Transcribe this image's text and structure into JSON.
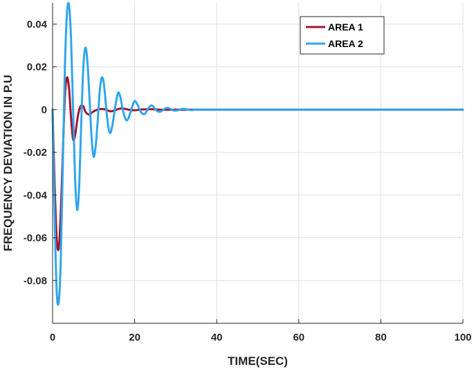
{
  "chart_data": {
    "type": "line",
    "title": "",
    "xlabel": "TIME(SEC)",
    "ylabel": "FREQUENCY DEVIATION IN P.U",
    "xlim": [
      0,
      100
    ],
    "ylim": [
      -0.1,
      0.05
    ],
    "x_ticks": [
      0,
      20,
      40,
      60,
      80,
      100
    ],
    "x_tick_labels": [
      "0",
      "20",
      "40",
      "60",
      "80",
      "100"
    ],
    "y_ticks": [
      0.04,
      0.02,
      0,
      -0.02,
      -0.04,
      -0.06,
      -0.08
    ],
    "y_tick_labels": [
      "0.04",
      "0.02",
      "0",
      "-0.02",
      "-0.04",
      "-0.06",
      "-0.08"
    ],
    "grid": true,
    "legend_position": "top-right",
    "series": [
      {
        "name": "AREA 1",
        "color": "#a2142f",
        "x": [
          0,
          0.5,
          1.0,
          1.5,
          2.0,
          2.5,
          3.0,
          3.5,
          4.0,
          4.5,
          5.0,
          5.5,
          6.0,
          6.5,
          7.0,
          7.5,
          8.0,
          8.5,
          9.0,
          9.5,
          10.0,
          11.0,
          12.0,
          13.0,
          14.0,
          15.0,
          16.0,
          17.0,
          18.0,
          19.0,
          20.0,
          22.0,
          24.0,
          26.0,
          28.0,
          30.0,
          35.0,
          40.0,
          50.0,
          60.0,
          70.0,
          80.0,
          90.0,
          100.0
        ],
        "y": [
          0,
          -0.035,
          -0.06,
          -0.065,
          -0.048,
          -0.02,
          0.006,
          0.015,
          0.01,
          -0.004,
          -0.014,
          -0.012,
          -0.005,
          0.0,
          0.002,
          0.0015,
          -0.001,
          -0.002,
          -0.0022,
          -0.0015,
          -0.0008,
          0.0,
          0.0003,
          0.0,
          -0.0008,
          -0.0005,
          0.0003,
          0.0006,
          0.0002,
          -0.0002,
          -0.0003,
          0.0001,
          0.0002,
          0.0,
          -0.0001,
          0.0,
          0.0,
          0.0,
          0.0,
          0.0,
          0.0,
          0.0,
          0.0,
          0.0
        ]
      },
      {
        "name": "AREA 2",
        "color": "#2ea6ec",
        "x": [
          0,
          0.5,
          1.0,
          1.5,
          2.0,
          2.5,
          3.0,
          3.5,
          4.0,
          4.5,
          5.0,
          5.5,
          6.0,
          6.5,
          7.0,
          7.5,
          8.0,
          8.5,
          9.0,
          9.5,
          10.0,
          10.5,
          11.0,
          11.5,
          12.0,
          12.5,
          13.0,
          13.5,
          14.0,
          14.5,
          15.0,
          15.5,
          16.0,
          16.5,
          17.0,
          17.5,
          18.0,
          18.5,
          19.0,
          19.5,
          20.0,
          20.5,
          21.0,
          21.5,
          22.0,
          22.5,
          23.0,
          23.5,
          24.0,
          24.5,
          25.0,
          25.5,
          26.0,
          26.5,
          27.0,
          27.5,
          28.0,
          28.5,
          29.0,
          29.5,
          30.0,
          30.5,
          31.0,
          31.5,
          32.0,
          32.5,
          33.0,
          33.5,
          34.0,
          34.5,
          35.0,
          36.0,
          38.0,
          40.0,
          45.0,
          50.0,
          60.0,
          70.0,
          80.0,
          90.0,
          100.0
        ],
        "y": [
          0,
          -0.05,
          -0.085,
          -0.09,
          -0.07,
          -0.025,
          0.02,
          0.045,
          0.049,
          0.033,
          0.0,
          -0.033,
          -0.047,
          -0.035,
          -0.005,
          0.02,
          0.029,
          0.022,
          0.005,
          -0.013,
          -0.022,
          -0.017,
          -0.005,
          0.009,
          0.015,
          0.012,
          0.002,
          -0.007,
          -0.011,
          -0.008,
          -0.002,
          0.004,
          0.008,
          0.006,
          0.001,
          -0.003,
          -0.005,
          -0.004,
          -0.001,
          0.002,
          0.004,
          0.003,
          0.001,
          -0.001,
          -0.002,
          -0.002,
          -0.0005,
          0.001,
          0.002,
          0.0015,
          0.0003,
          -0.0007,
          -0.001,
          -0.0008,
          0.0,
          0.0006,
          0.0008,
          0.0005,
          0.0,
          -0.0004,
          -0.0005,
          -0.0003,
          0.0,
          0.0003,
          0.0003,
          0.0002,
          0.0,
          -0.0002,
          -0.0002,
          -0.0001,
          0.0,
          0.0,
          0.0,
          0.0,
          0.0,
          0.0,
          0.0,
          0.0,
          0.0,
          0.0,
          0.0
        ]
      }
    ]
  }
}
